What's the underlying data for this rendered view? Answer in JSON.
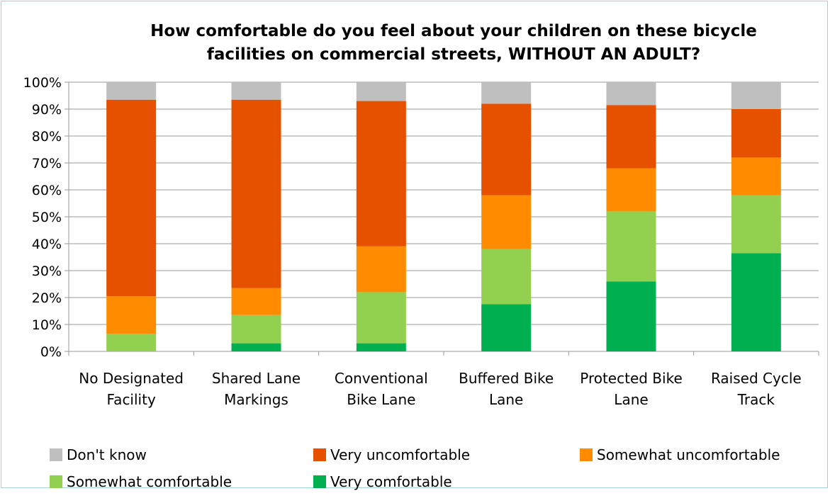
{
  "chart_data": {
    "type": "bar",
    "stacked": true,
    "title_lines": [
      "How comfortable do you feel about your children on these bicycle",
      "facilities on commercial streets, WITHOUT AN ADULT?"
    ],
    "categories": [
      [
        "No Designated",
        "Facility"
      ],
      [
        "Shared Lane",
        "Markings"
      ],
      [
        "Conventional",
        "Bike Lane"
      ],
      [
        "Buffered Bike",
        "Lane"
      ],
      [
        "Protected Bike",
        "Lane"
      ],
      [
        "Raised Cycle",
        "Track"
      ]
    ],
    "ylim": [
      0,
      100
    ],
    "yticks": [
      "0%",
      "10%",
      "20%",
      "30%",
      "40%",
      "50%",
      "60%",
      "70%",
      "80%",
      "90%",
      "100%"
    ],
    "grid": true,
    "legend_position": "bottom",
    "series": [
      {
        "name": "Very comfortable",
        "color": "#00b050",
        "values": [
          0,
          3,
          3,
          17.5,
          26,
          36.5
        ]
      },
      {
        "name": "Somewhat comfortable",
        "color": "#92d050",
        "values": [
          6.5,
          10.5,
          19,
          20.5,
          26,
          21.5
        ]
      },
      {
        "name": "Somewhat uncomfortable",
        "color": "#ff8c00",
        "values": [
          14,
          10,
          17,
          20,
          16,
          14
        ]
      },
      {
        "name": "Very uncomfortable",
        "color": "#e65100",
        "values": [
          73,
          70,
          54,
          34,
          23.5,
          18
        ]
      },
      {
        "name": "Don't know",
        "color": "#bfbfbf",
        "values": [
          6.5,
          6.5,
          7,
          8,
          8.5,
          10
        ]
      }
    ],
    "legend_order": [
      "Don't know",
      "Very uncomfortable",
      "Somewhat uncomfortable",
      "Somewhat comfortable",
      "Very comfortable"
    ]
  }
}
